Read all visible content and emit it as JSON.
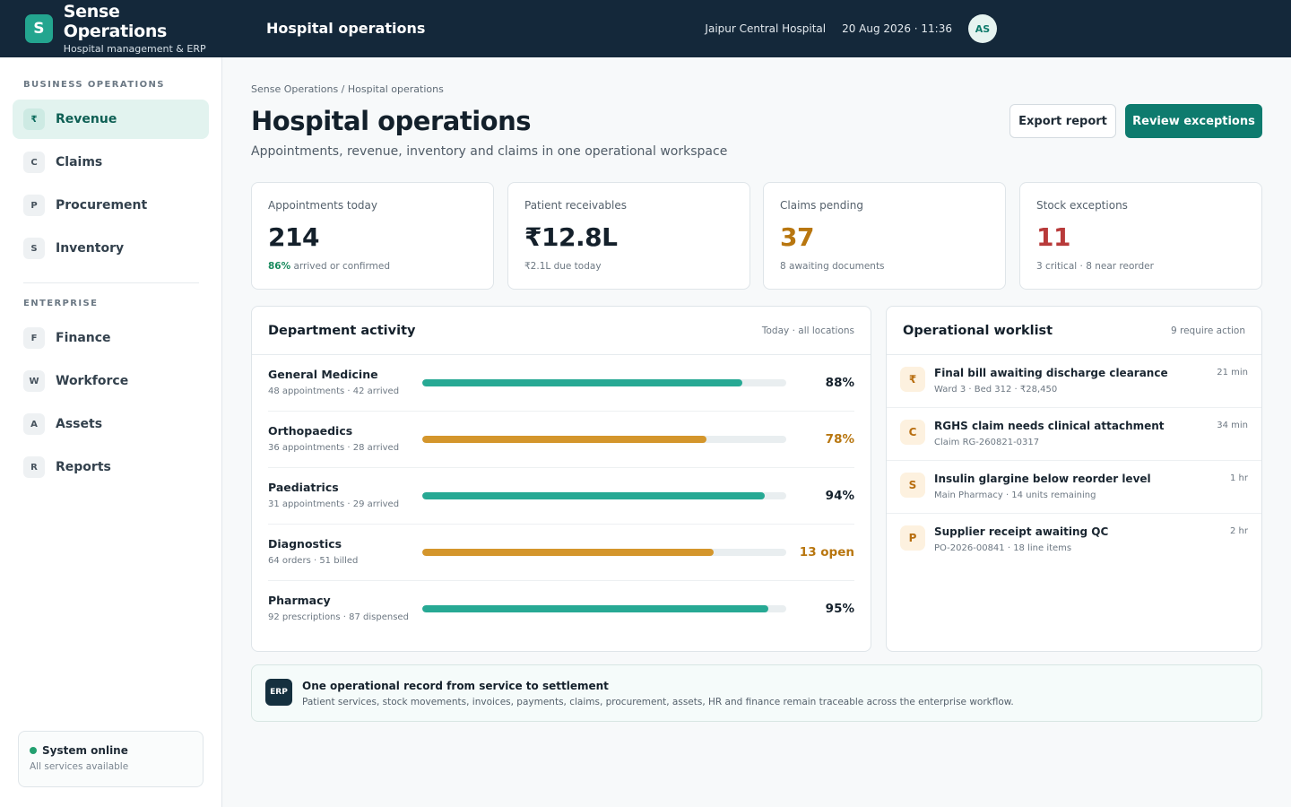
{
  "app": {
    "logo_letter": "S",
    "name": "Sense Operations",
    "subtitle": "Hospital management & ERP"
  },
  "topbar": {
    "title": "Hospital operations",
    "hospital": "Jaipur Central Hospital",
    "datetime": "20 Aug 2026 · 11:36",
    "avatar_initials": "AS"
  },
  "sidebar": {
    "section1": "BUSINESS OPERATIONS",
    "items1": [
      {
        "badge": "₹",
        "label": "Revenue",
        "active": true
      },
      {
        "badge": "C",
        "label": "Claims"
      },
      {
        "badge": "P",
        "label": "Procurement"
      },
      {
        "badge": "S",
        "label": "Inventory"
      }
    ],
    "section2": "ENTERPRISE",
    "items2": [
      {
        "badge": "F",
        "label": "Finance"
      },
      {
        "badge": "W",
        "label": "Workforce"
      },
      {
        "badge": "A",
        "label": "Assets"
      },
      {
        "badge": "R",
        "label": "Reports"
      }
    ],
    "status": {
      "title": "System online",
      "subtitle": "All services available"
    }
  },
  "page": {
    "breadcrumb": "Sense Operations / Hospital operations",
    "title": "Hospital operations",
    "subtitle": "Appointments, revenue, inventory and claims in one operational workspace",
    "export_label": "Export report",
    "review_label": "Review exceptions"
  },
  "kpis": [
    {
      "label": "Appointments today",
      "value": "214",
      "value_color": "#14202b",
      "note_strong": "86%",
      "note": " arrived or confirmed"
    },
    {
      "label": "Patient receivables",
      "value": "₹12.8L",
      "value_color": "#14202b",
      "note_strong": "",
      "note": "₹2.1L due today"
    },
    {
      "label": "Claims pending",
      "value": "37",
      "value_color": "#b8760f",
      "note_strong": "",
      "note": "8 awaiting documents"
    },
    {
      "label": "Stock exceptions",
      "value": "11",
      "value_color": "#b83a3a",
      "note_strong": "",
      "note": "3 critical · 8 near reorder"
    }
  ],
  "departments": {
    "title": "Department activity",
    "meta": "Today · all locations",
    "rows": [
      {
        "name": "General Medicine",
        "sub": "48 appointments · 42 arrived",
        "fill": 0.88,
        "value": "88%",
        "color": "#27a994",
        "value_color": "#14202b"
      },
      {
        "name": "Orthopaedics",
        "sub": "36 appointments · 28 arrived",
        "fill": 0.78,
        "value": "78%",
        "color": "#d4962c",
        "value_color": "#b8760f"
      },
      {
        "name": "Paediatrics",
        "sub": "31 appointments · 29 arrived",
        "fill": 0.94,
        "value": "94%",
        "color": "#27a994",
        "value_color": "#14202b"
      },
      {
        "name": "Diagnostics",
        "sub": "64 orders · 51 billed",
        "fill": 0.8,
        "value": "13 open",
        "color": "#d4962c",
        "value_color": "#b8760f"
      },
      {
        "name": "Pharmacy",
        "sub": "92 prescriptions · 87 dispensed",
        "fill": 0.95,
        "value": "95%",
        "color": "#27a994",
        "value_color": "#14202b"
      }
    ]
  },
  "worklist": {
    "title": "Operational worklist",
    "meta": "9 require action",
    "items": [
      {
        "badge": "₹",
        "title": "Final bill awaiting discharge clearance",
        "sub": "Ward 3 · Bed 312 · ₹28,450",
        "time": "21 min"
      },
      {
        "badge": "C",
        "title": "RGHS claim needs clinical attachment",
        "sub": "Claim RG-260821-0317",
        "time": "34 min"
      },
      {
        "badge": "S",
        "title": "Insulin glargine below reorder level",
        "sub": "Main Pharmacy · 14 units remaining",
        "time": "1 hr"
      },
      {
        "badge": "P",
        "title": "Supplier receipt awaiting QC",
        "sub": "PO-2026-00841 · 18 line items",
        "time": "2 hr"
      }
    ]
  },
  "footer": {
    "badge": "ERP",
    "title": "One operational record from service to settlement",
    "subtitle": "Patient services, stock movements, invoices, payments, claims, procurement, assets, HR and finance remain traceable across the enterprise workflow."
  }
}
